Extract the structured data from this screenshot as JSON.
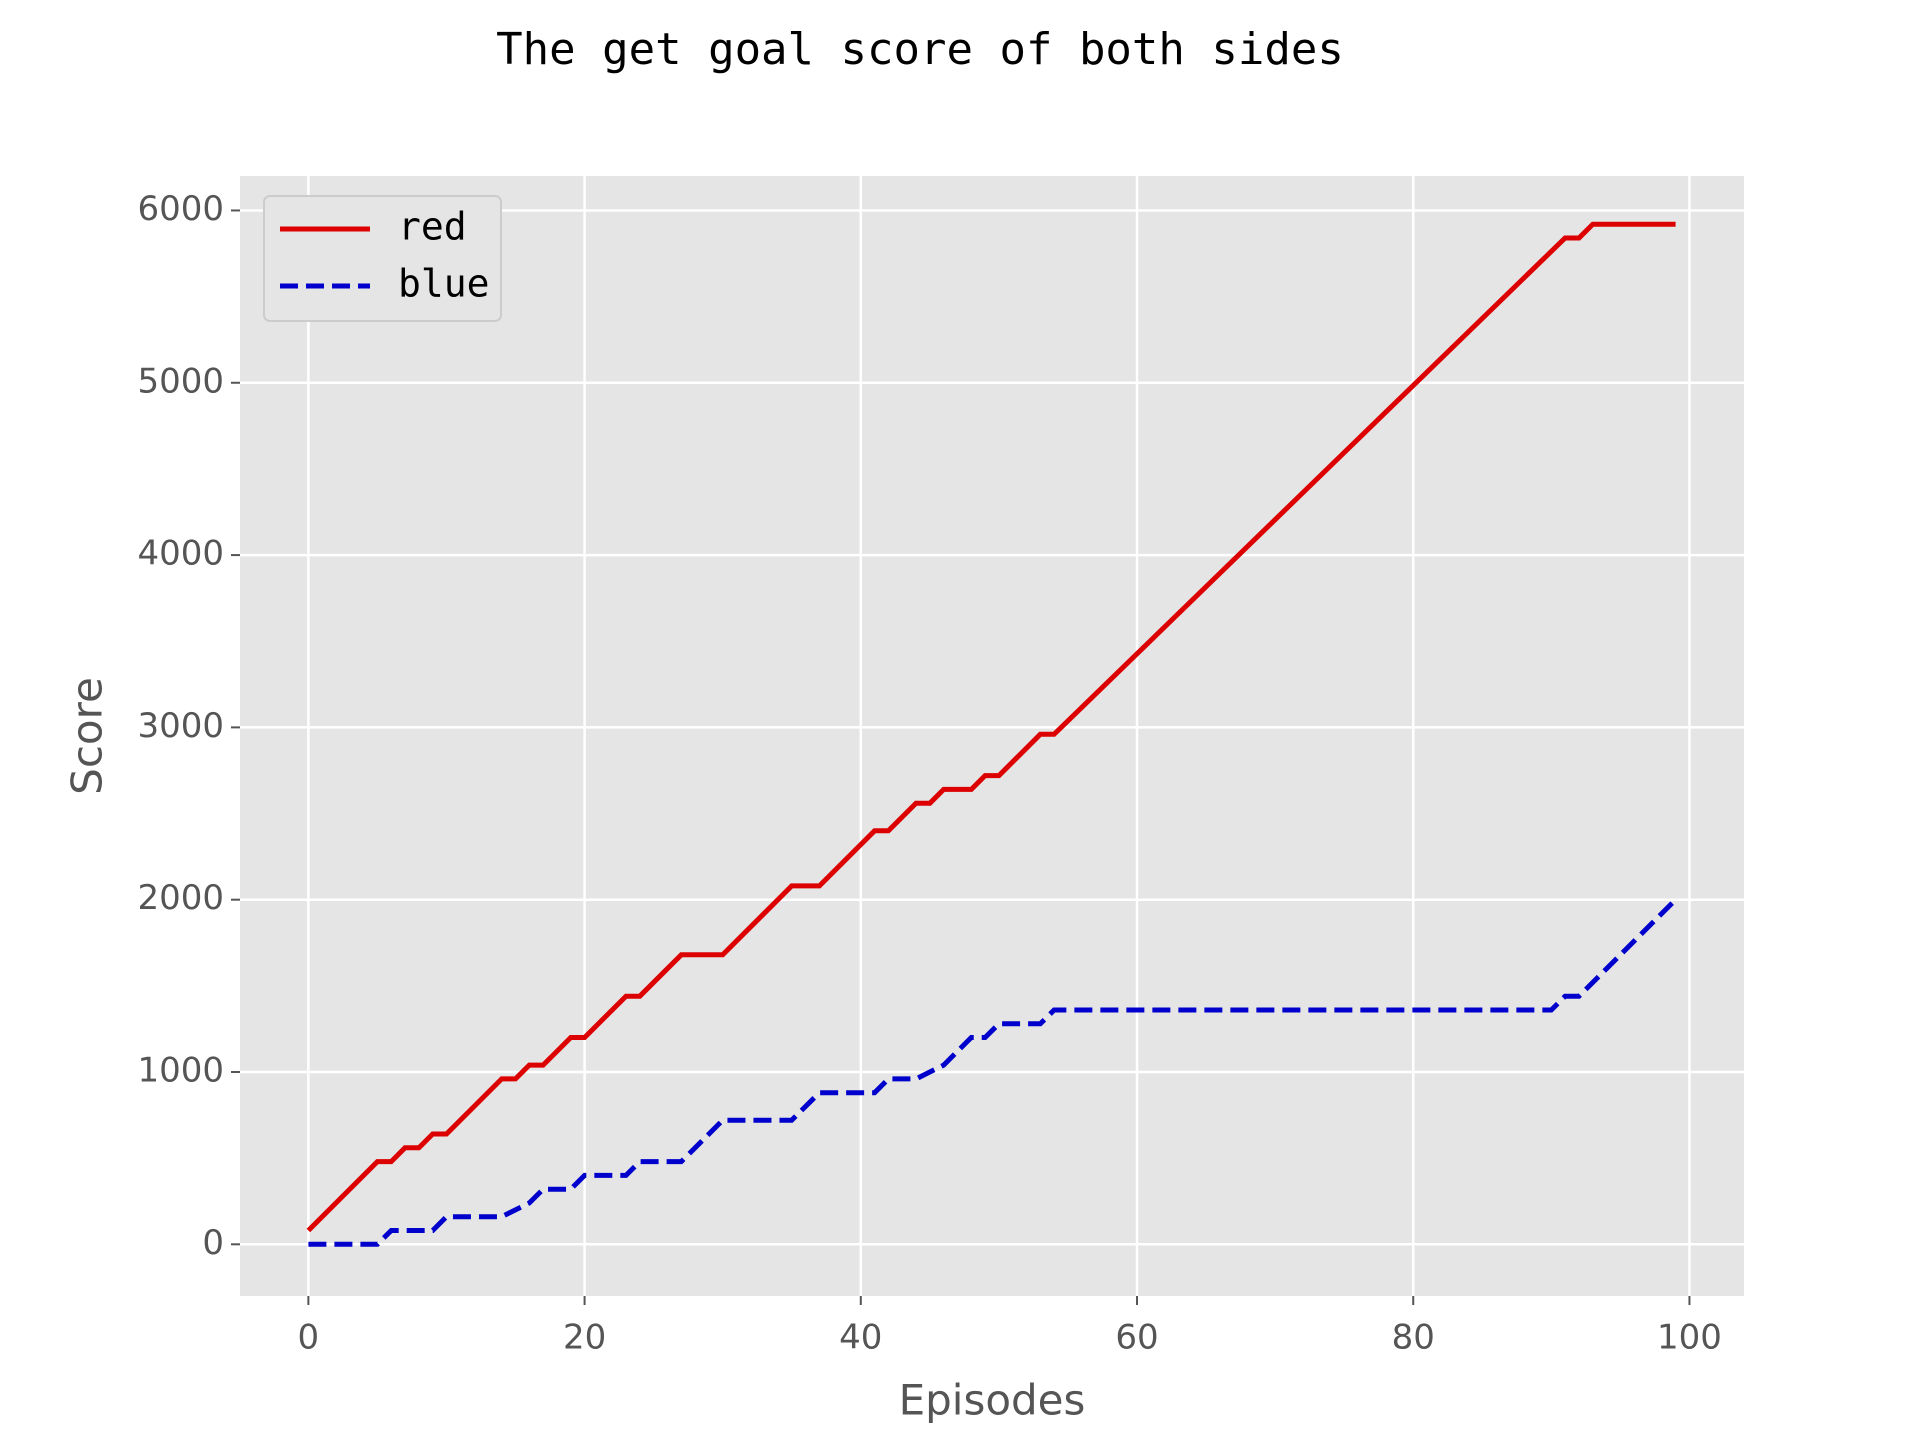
{
  "chart_data": {
    "type": "line",
    "title": "The get goal score of both sides",
    "xlabel": "Episodes",
    "ylabel": "Score",
    "xlim": [
      -4.95,
      103.95
    ],
    "ylim": [
      -300,
      6200
    ],
    "xticks": [
      0,
      20,
      40,
      60,
      80,
      100
    ],
    "yticks": [
      0,
      1000,
      2000,
      3000,
      4000,
      5000,
      6000
    ],
    "grid": true,
    "background": "#e5e5e5",
    "legend": {
      "placement": "top-left"
    },
    "series": [
      {
        "name": "red",
        "color": "#dd0000",
        "style": "solid",
        "points": [
          [
            0,
            80
          ],
          [
            5,
            480
          ],
          [
            6,
            480
          ],
          [
            7,
            560
          ],
          [
            8,
            560
          ],
          [
            9,
            640
          ],
          [
            10,
            640
          ],
          [
            14,
            960
          ],
          [
            15,
            960
          ],
          [
            16,
            1040
          ],
          [
            17,
            1040
          ],
          [
            19,
            1200
          ],
          [
            20,
            1200
          ],
          [
            23,
            1440
          ],
          [
            24,
            1440
          ],
          [
            27,
            1680
          ],
          [
            30,
            1680
          ],
          [
            35,
            2080
          ],
          [
            37,
            2080
          ],
          [
            41,
            2400
          ],
          [
            42,
            2400
          ],
          [
            44,
            2560
          ],
          [
            45,
            2560
          ],
          [
            46,
            2640
          ],
          [
            48,
            2640
          ],
          [
            49,
            2720
          ],
          [
            50,
            2720
          ],
          [
            53,
            2960
          ],
          [
            54,
            2960
          ],
          [
            91,
            5840
          ],
          [
            92,
            5840
          ],
          [
            93,
            5920
          ],
          [
            99,
            5920
          ]
        ]
      },
      {
        "name": "blue",
        "color": "#0000cc",
        "style": "dashed",
        "points": [
          [
            0,
            0
          ],
          [
            5,
            0
          ],
          [
            6,
            80
          ],
          [
            9,
            80
          ],
          [
            10,
            160
          ],
          [
            14,
            160
          ],
          [
            16,
            240
          ],
          [
            17,
            320
          ],
          [
            19,
            320
          ],
          [
            20,
            400
          ],
          [
            23,
            400
          ],
          [
            24,
            480
          ],
          [
            27,
            480
          ],
          [
            30,
            720
          ],
          [
            35,
            720
          ],
          [
            37,
            880
          ],
          [
            41,
            880
          ],
          [
            42,
            960
          ],
          [
            44,
            960
          ],
          [
            46,
            1040
          ],
          [
            48,
            1200
          ],
          [
            49,
            1200
          ],
          [
            50,
            1280
          ],
          [
            53,
            1280
          ],
          [
            54,
            1360
          ],
          [
            90,
            1360
          ],
          [
            91,
            1440
          ],
          [
            92,
            1440
          ],
          [
            99,
            2000
          ]
        ]
      }
    ]
  }
}
